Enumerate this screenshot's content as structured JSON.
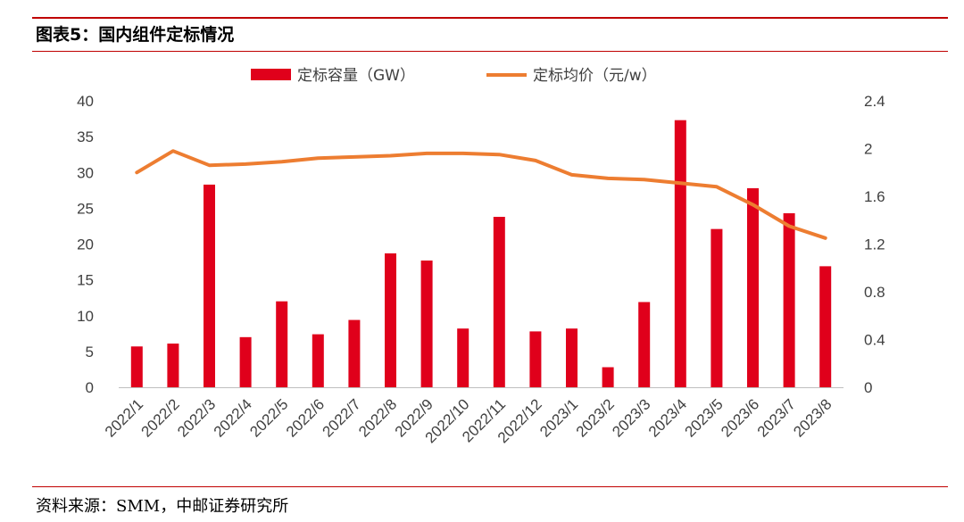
{
  "figure": {
    "title": "图表5：国内组件定标情况",
    "source": "资料来源：SMM，中邮证券研究所"
  },
  "colors": {
    "bar": "#e0001b",
    "line": "#ed7d31",
    "rule": "#c00000"
  },
  "chart_data": {
    "type": "bar",
    "categories": [
      "2022/1",
      "2022/2",
      "2022/3",
      "2022/4",
      "2022/5",
      "2022/6",
      "2022/7",
      "2022/8",
      "2022/9",
      "2022/10",
      "2022/11",
      "2022/12",
      "2023/1",
      "2023/2",
      "2023/3",
      "2023/4",
      "2023/5",
      "2023/6",
      "2023/7",
      "2023/8"
    ],
    "series": [
      {
        "name": "定标容量（GW）",
        "type": "bar",
        "axis": "left",
        "values": [
          5.7,
          6.1,
          28.3,
          7.0,
          12.0,
          7.4,
          9.4,
          18.7,
          17.7,
          8.2,
          23.8,
          7.8,
          8.2,
          2.8,
          11.9,
          37.3,
          22.1,
          27.8,
          24.3,
          16.9
        ]
      },
      {
        "name": "定标均价（元/w）",
        "type": "line",
        "axis": "right",
        "values": [
          1.8,
          1.98,
          1.86,
          1.87,
          1.89,
          1.92,
          1.93,
          1.94,
          1.96,
          1.96,
          1.95,
          1.9,
          1.78,
          1.75,
          1.74,
          1.71,
          1.68,
          1.53,
          1.35,
          1.25
        ]
      }
    ],
    "ylim_left": [
      0,
      40
    ],
    "yticks_left": [
      "0",
      "5",
      "10",
      "15",
      "20",
      "25",
      "30",
      "35",
      "40"
    ],
    "ylim_right": [
      0,
      2.4
    ],
    "yticks_right": [
      "0",
      "0.4",
      "0.8",
      "1.2",
      "1.6",
      "2",
      "2.4"
    ],
    "legend_position": "top-center",
    "grid": false
  }
}
